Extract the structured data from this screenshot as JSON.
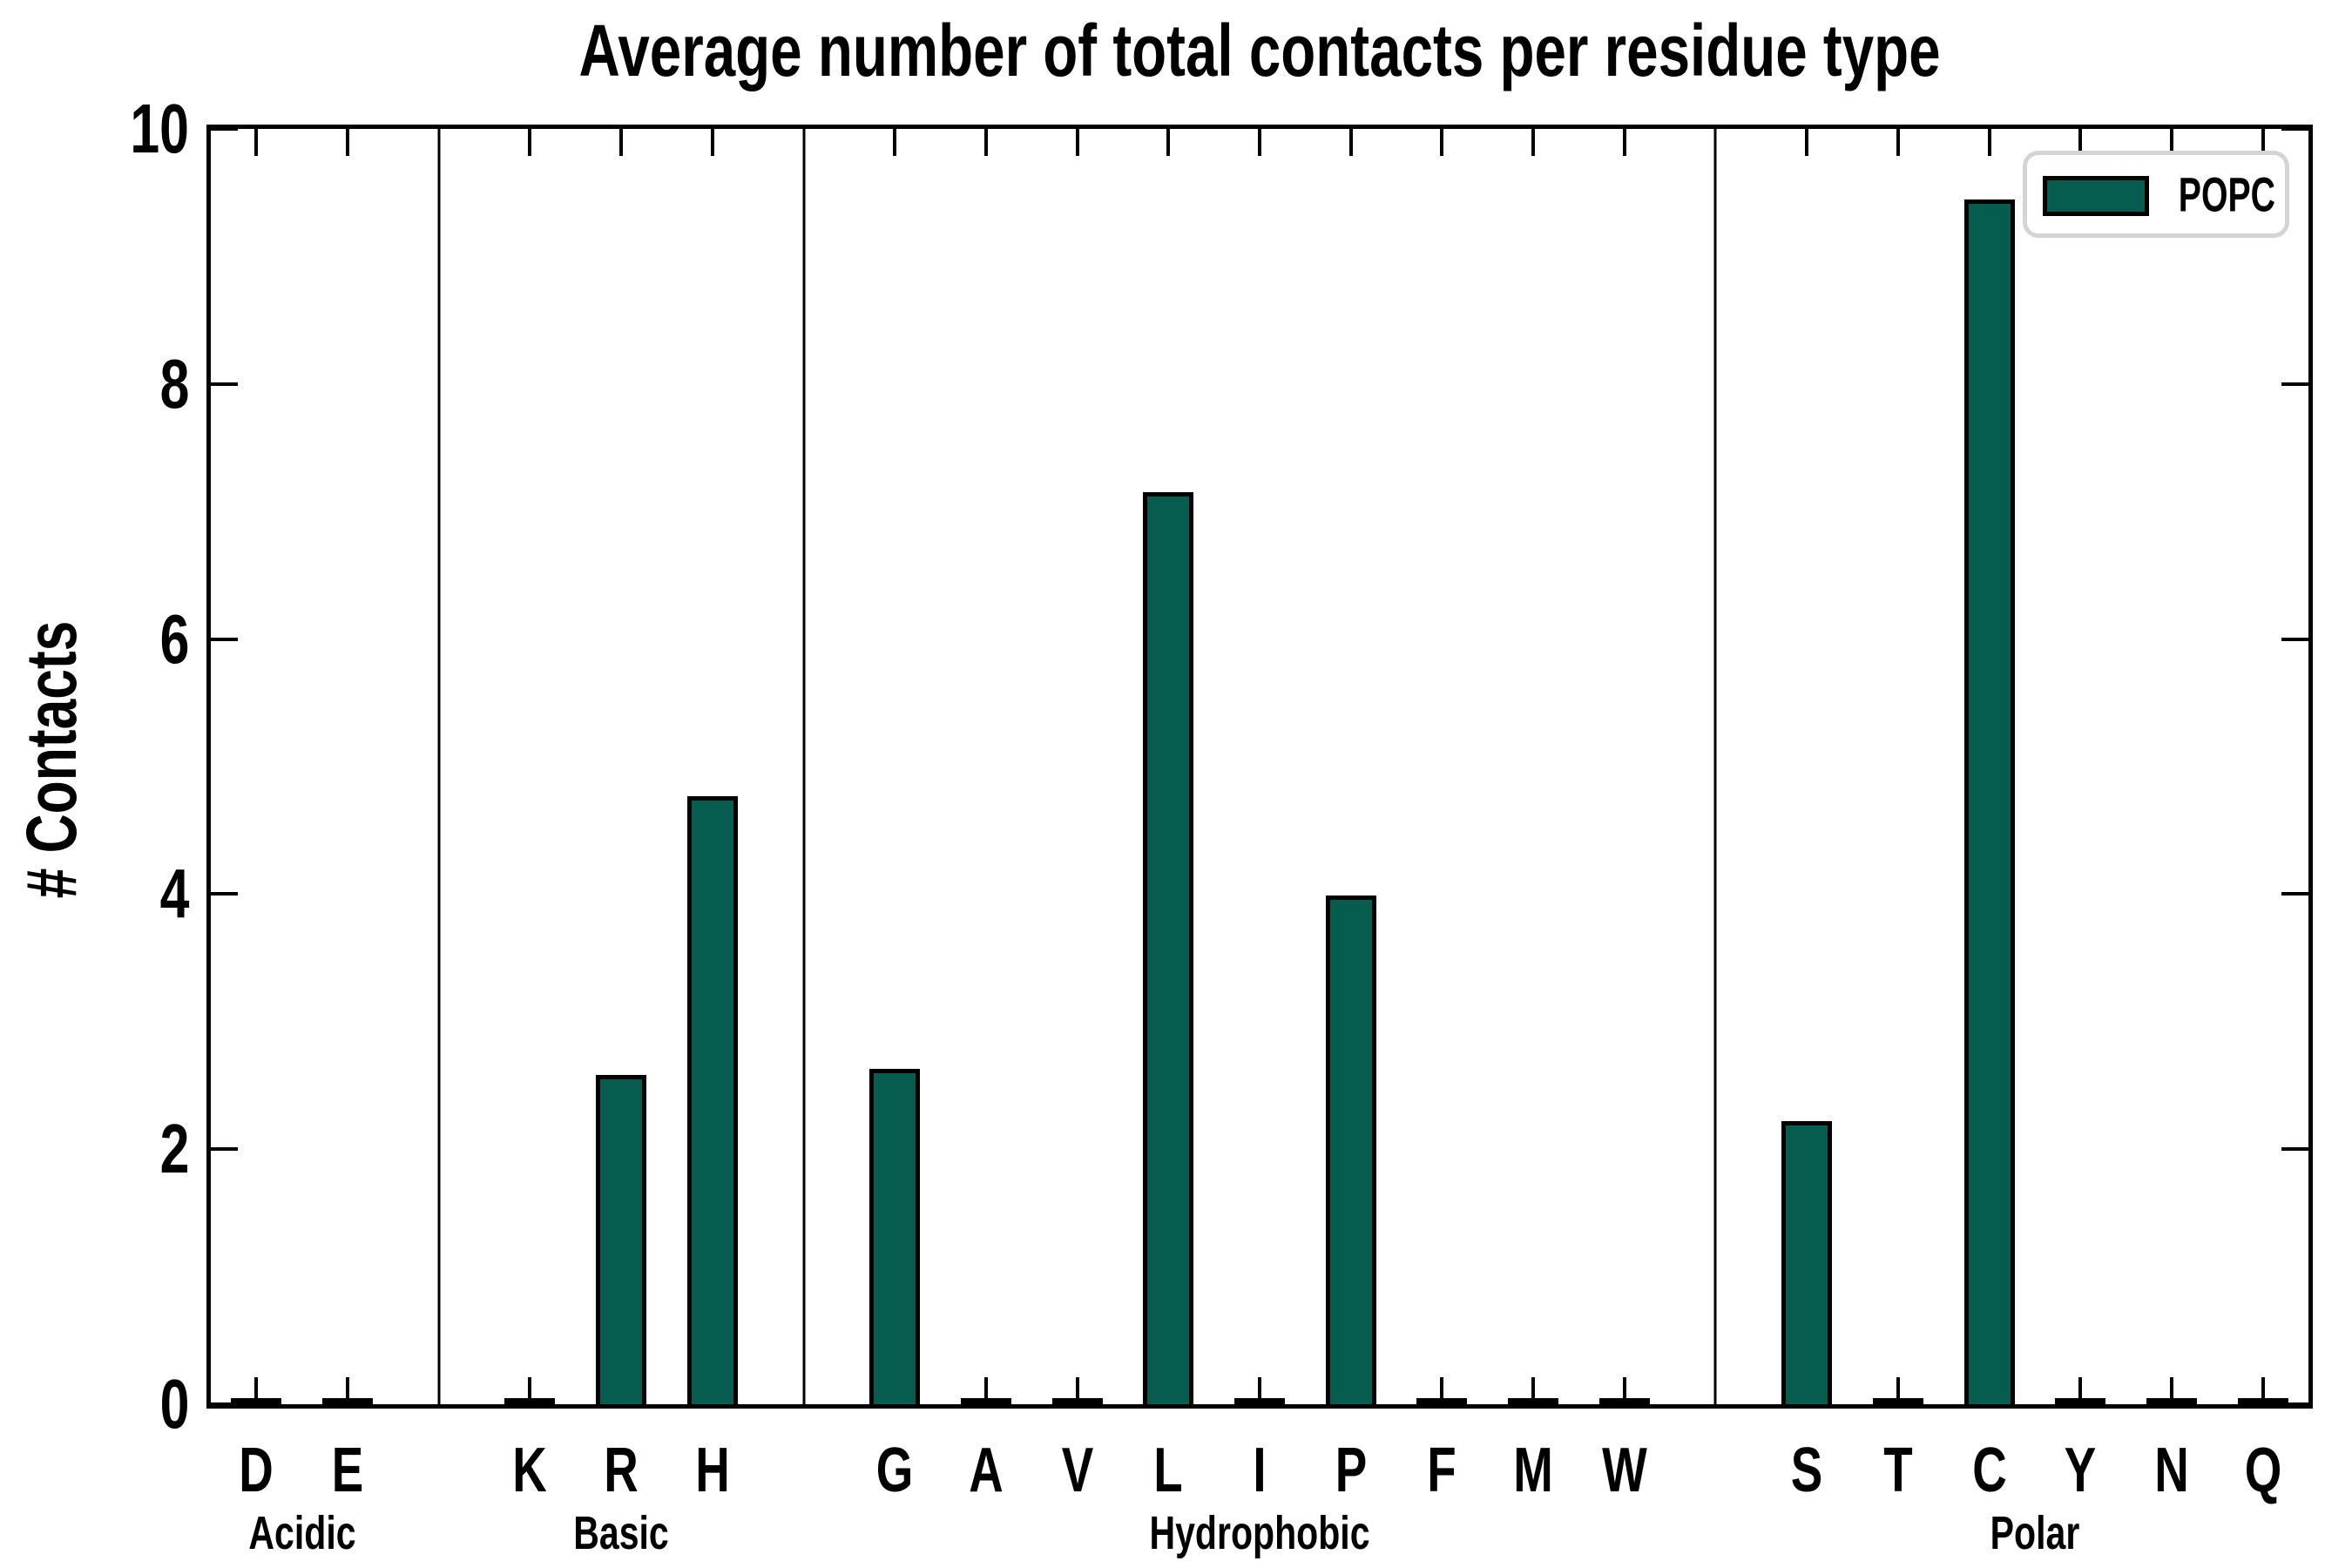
{
  "chart_data": {
    "type": "bar",
    "title": "Average number of total contacts per residue type",
    "xlabel": "",
    "ylabel": "# Contacts",
    "ylim": [
      0,
      10
    ],
    "yticks": [
      0,
      2,
      4,
      6,
      8,
      10
    ],
    "grid": false,
    "legend": [
      "POPC"
    ],
    "legend_position": "upper right",
    "categories": [
      "D",
      "E",
      "K",
      "R",
      "H",
      "G",
      "A",
      "V",
      "L",
      "I",
      "P",
      "F",
      "M",
      "W",
      "S",
      "T",
      "C",
      "Y",
      "N",
      "Q"
    ],
    "values": [
      0.03,
      0.03,
      0.03,
      2.58,
      4.77,
      2.63,
      0.03,
      0.03,
      7.15,
      0.03,
      3.99,
      0.03,
      0.03,
      0.03,
      2.22,
      0.03,
      9.45,
      0.03,
      0.03,
      0.03
    ],
    "groups": [
      {
        "label": "Acidic",
        "residues": [
          "D",
          "E"
        ]
      },
      {
        "label": "Basic",
        "residues": [
          "K",
          "R",
          "H"
        ]
      },
      {
        "label": "Hydrophobic",
        "residues": [
          "G",
          "A",
          "V",
          "L",
          "I",
          "P",
          "F",
          "M",
          "W"
        ]
      },
      {
        "label": "Polar",
        "residues": [
          "S",
          "T",
          "C",
          "Y",
          "N",
          "Q"
        ]
      }
    ],
    "colors": {
      "bar_fill": "#075c50",
      "bar_edge": "#000000",
      "separator": "#000000",
      "legend_border": "#d4d4d4",
      "text": "#000000"
    }
  }
}
